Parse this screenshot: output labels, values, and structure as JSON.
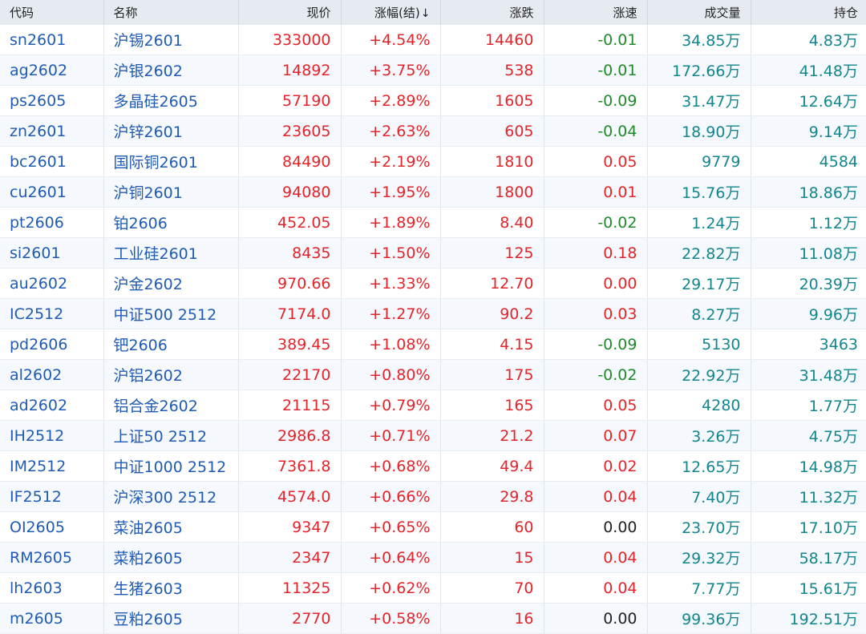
{
  "colors": {
    "header_bg": "#e6ebf2",
    "row_alt": "#f5f8fc",
    "up": "#e3242b",
    "down": "#1f8a2a",
    "flat": "#222222",
    "code": "#1f5bb4",
    "volume": "#12868f"
  },
  "header": {
    "code": "代码",
    "name": "名称",
    "price": "现价",
    "change_pct": "涨幅(结)",
    "sort_indicator": "↓",
    "change": "涨跌",
    "speed": "涨速",
    "volume": "成交量",
    "open_interest": "持仓"
  },
  "rows": [
    {
      "code": "sn2601",
      "name": "沪锡2601",
      "price": "333000",
      "change_pct": "+4.54%",
      "change": "14460",
      "speed": "-0.01",
      "volume": "34.85万",
      "oi": "4.83万",
      "dir": "up",
      "speed_dir": "down"
    },
    {
      "code": "ag2602",
      "name": "沪银2602",
      "price": "14892",
      "change_pct": "+3.75%",
      "change": "538",
      "speed": "-0.01",
      "volume": "172.66万",
      "oi": "41.48万",
      "dir": "up",
      "speed_dir": "down"
    },
    {
      "code": "ps2605",
      "name": "多晶硅2605",
      "price": "57190",
      "change_pct": "+2.89%",
      "change": "1605",
      "speed": "-0.09",
      "volume": "31.47万",
      "oi": "12.64万",
      "dir": "up",
      "speed_dir": "down"
    },
    {
      "code": "zn2601",
      "name": "沪锌2601",
      "price": "23605",
      "change_pct": "+2.63%",
      "change": "605",
      "speed": "-0.04",
      "volume": "18.90万",
      "oi": "9.14万",
      "dir": "up",
      "speed_dir": "down"
    },
    {
      "code": "bc2601",
      "name": "国际铜2601",
      "price": "84490",
      "change_pct": "+2.19%",
      "change": "1810",
      "speed": "0.05",
      "volume": "9779",
      "oi": "4584",
      "dir": "up",
      "speed_dir": "up"
    },
    {
      "code": "cu2601",
      "name": "沪铜2601",
      "price": "94080",
      "change_pct": "+1.95%",
      "change": "1800",
      "speed": "0.01",
      "volume": "15.76万",
      "oi": "18.86万",
      "dir": "up",
      "speed_dir": "up"
    },
    {
      "code": "pt2606",
      "name": "铂2606",
      "price": "452.05",
      "change_pct": "+1.89%",
      "change": "8.40",
      "speed": "-0.02",
      "volume": "1.24万",
      "oi": "1.12万",
      "dir": "up",
      "speed_dir": "down"
    },
    {
      "code": "si2601",
      "name": "工业硅2601",
      "price": "8435",
      "change_pct": "+1.50%",
      "change": "125",
      "speed": "0.18",
      "volume": "22.82万",
      "oi": "11.08万",
      "dir": "up",
      "speed_dir": "up"
    },
    {
      "code": "au2602",
      "name": "沪金2602",
      "price": "970.66",
      "change_pct": "+1.33%",
      "change": "12.70",
      "speed": "0.00",
      "volume": "29.17万",
      "oi": "20.39万",
      "dir": "up",
      "speed_dir": "up"
    },
    {
      "code": "IC2512",
      "name": "中证500 2512",
      "price": "7174.0",
      "change_pct": "+1.27%",
      "change": "90.2",
      "speed": "0.03",
      "volume": "8.27万",
      "oi": "9.96万",
      "dir": "up",
      "speed_dir": "up"
    },
    {
      "code": "pd2606",
      "name": "钯2606",
      "price": "389.45",
      "change_pct": "+1.08%",
      "change": "4.15",
      "speed": "-0.09",
      "volume": "5130",
      "oi": "3463",
      "dir": "up",
      "speed_dir": "down"
    },
    {
      "code": "al2602",
      "name": "沪铝2602",
      "price": "22170",
      "change_pct": "+0.80%",
      "change": "175",
      "speed": "-0.02",
      "volume": "22.92万",
      "oi": "31.48万",
      "dir": "up",
      "speed_dir": "down"
    },
    {
      "code": "ad2602",
      "name": "铝合金2602",
      "price": "21115",
      "change_pct": "+0.79%",
      "change": "165",
      "speed": "0.05",
      "volume": "4280",
      "oi": "1.77万",
      "dir": "up",
      "speed_dir": "up"
    },
    {
      "code": "IH2512",
      "name": "上证50 2512",
      "price": "2986.8",
      "change_pct": "+0.71%",
      "change": "21.2",
      "speed": "0.07",
      "volume": "3.26万",
      "oi": "4.75万",
      "dir": "up",
      "speed_dir": "up"
    },
    {
      "code": "IM2512",
      "name": "中证1000 2512",
      "price": "7361.8",
      "change_pct": "+0.68%",
      "change": "49.4",
      "speed": "0.02",
      "volume": "12.65万",
      "oi": "14.98万",
      "dir": "up",
      "speed_dir": "up"
    },
    {
      "code": "IF2512",
      "name": "沪深300 2512",
      "price": "4574.0",
      "change_pct": "+0.66%",
      "change": "29.8",
      "speed": "0.04",
      "volume": "7.40万",
      "oi": "11.32万",
      "dir": "up",
      "speed_dir": "up"
    },
    {
      "code": "OI2605",
      "name": "菜油2605",
      "price": "9347",
      "change_pct": "+0.65%",
      "change": "60",
      "speed": "0.00",
      "volume": "23.70万",
      "oi": "17.10万",
      "dir": "up",
      "speed_dir": "flat"
    },
    {
      "code": "RM2605",
      "name": "菜粕2605",
      "price": "2347",
      "change_pct": "+0.64%",
      "change": "15",
      "speed": "0.04",
      "volume": "29.32万",
      "oi": "58.17万",
      "dir": "up",
      "speed_dir": "up"
    },
    {
      "code": "lh2603",
      "name": "生猪2603",
      "price": "11325",
      "change_pct": "+0.62%",
      "change": "70",
      "speed": "0.04",
      "volume": "7.77万",
      "oi": "15.61万",
      "dir": "up",
      "speed_dir": "up"
    },
    {
      "code": "m2605",
      "name": "豆粕2605",
      "price": "2770",
      "change_pct": "+0.58%",
      "change": "16",
      "speed": "0.00",
      "volume": "99.36万",
      "oi": "192.51万",
      "dir": "up",
      "speed_dir": "flat"
    }
  ]
}
